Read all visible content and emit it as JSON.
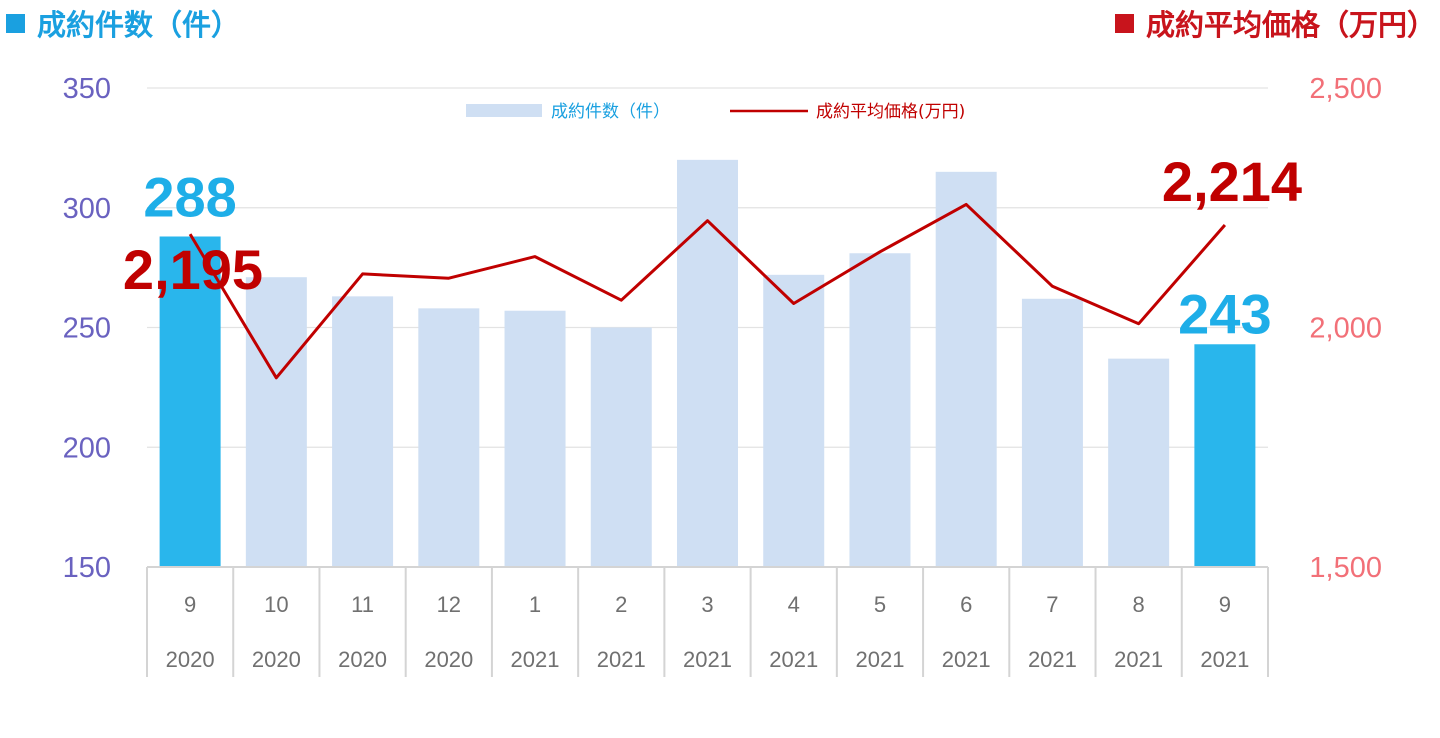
{
  "header": {
    "left_label": "成約件数（件）",
    "right_label": "成約平均価格（万円）"
  },
  "chart_data": {
    "type": "bar",
    "categories": [
      "9",
      "10",
      "11",
      "12",
      "1",
      "2",
      "3",
      "4",
      "5",
      "6",
      "7",
      "8",
      "9"
    ],
    "years": [
      "2020",
      "2020",
      "2020",
      "2020",
      "2021",
      "2021",
      "2021",
      "2021",
      "2021",
      "2021",
      "2021",
      "2021",
      "2021"
    ],
    "highlight_index": [
      0,
      12
    ],
    "legend_position": "top-center",
    "grid": true,
    "y_left": {
      "ticks": [
        "150",
        "200",
        "250",
        "300",
        "350"
      ],
      "range": [
        150,
        350
      ]
    },
    "y_right": {
      "ticks": [
        "1,500",
        "2,000",
        "2,500"
      ],
      "range": [
        1500,
        2500
      ]
    },
    "series": [
      {
        "name": "成約件数（件）",
        "type": "bar",
        "axis": "left",
        "values": [
          288,
          271,
          263,
          258,
          257,
          250,
          320,
          272,
          281,
          315,
          262,
          237,
          243
        ],
        "color": "#cfdff3",
        "highlight_color": "#29b6ec"
      },
      {
        "name": "成約平均価格(万円)",
        "type": "line",
        "axis": "right",
        "values": [
          2195,
          1895,
          2112,
          2103,
          2148,
          2057,
          2223,
          2050,
          2158,
          2257,
          2086,
          2008,
          2214
        ],
        "color": "#c00000"
      }
    ],
    "annotations": [
      {
        "text": "288",
        "series": 0,
        "index": 0,
        "color": "#1eaee8"
      },
      {
        "text": "2,195",
        "series": 1,
        "index": 0,
        "color": "#c00000"
      },
      {
        "text": "2,214",
        "series": 1,
        "index": 12,
        "color": "#c00000"
      },
      {
        "text": "243",
        "series": 0,
        "index": 12,
        "color": "#1eaee8"
      }
    ]
  }
}
